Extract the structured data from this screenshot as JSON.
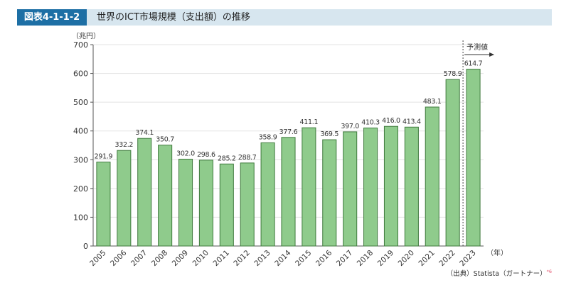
{
  "header": {
    "figure_label": "図表4-1-1-2",
    "title": "世界のICT市場規模（支出額）の推移"
  },
  "source": {
    "text": "（出典）Statista（ガートナー）",
    "note": "*6"
  },
  "colors": {
    "bar_fill": "#8fcb8c",
    "bar_stroke": "#3f7a3d",
    "axis": "#555555",
    "grid": "#e3e3e3",
    "header_bg": "#d7e6ef",
    "tag_bg": "#1d6fa5"
  },
  "chart_data": {
    "type": "bar",
    "ylabel": "（兆円）",
    "xlabel": "（年）",
    "ylim": [
      0,
      700
    ],
    "yticks": [
      0,
      100,
      200,
      300,
      400,
      500,
      600,
      700
    ],
    "grid": true,
    "forecast_label": "予測値",
    "categories": [
      "2005",
      "2006",
      "2007",
      "2008",
      "2009",
      "2010",
      "2011",
      "2012",
      "2013",
      "2014",
      "2015",
      "2016",
      "2017",
      "2018",
      "2019",
      "2020",
      "2021",
      "2022",
      "2023"
    ],
    "values": [
      291.9,
      332.2,
      374.1,
      350.7,
      302.0,
      298.6,
      285.2,
      288.7,
      358.9,
      377.6,
      411.1,
      369.5,
      397.0,
      410.3,
      416.0,
      413.4,
      483.1,
      578.9,
      614.7
    ],
    "value_labels": [
      "291.9",
      "332.2",
      "374.1",
      "350.7",
      "302.0",
      "298.6",
      "285.2",
      "288.7",
      "358.9",
      "377.6",
      "411.1",
      "369.5",
      "397.0",
      "410.3",
      "416.0",
      "413.4",
      "483.1",
      "578.9",
      "614.7"
    ]
  }
}
